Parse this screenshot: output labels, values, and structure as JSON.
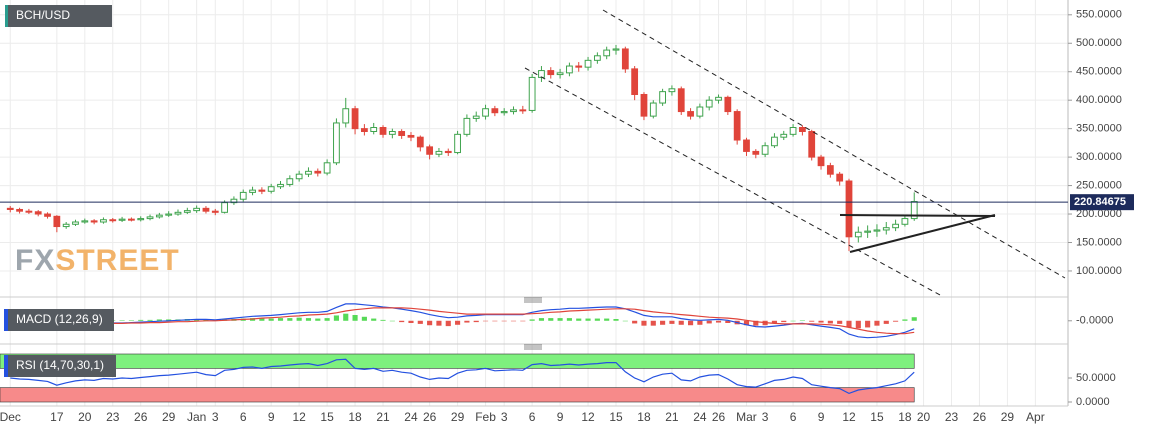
{
  "chart_data": {
    "type": "candlestick",
    "title": "BCH/USD",
    "watermark": [
      "FX",
      "STREET"
    ],
    "x": [
      12,
      13,
      14,
      15,
      16,
      17,
      18,
      19,
      20,
      21,
      22,
      23,
      24,
      25,
      26,
      27,
      28,
      29,
      30,
      31,
      32,
      33,
      34,
      35,
      36,
      37,
      38,
      39,
      40,
      41,
      42,
      43,
      44,
      45,
      46,
      47,
      48,
      49,
      50,
      51,
      52,
      53,
      54,
      55,
      56,
      57,
      58,
      59,
      60,
      61,
      62,
      63,
      64,
      65,
      66,
      67,
      68,
      69,
      70,
      71,
      72,
      73,
      74,
      75,
      76,
      77,
      78,
      79,
      80,
      81,
      82,
      83,
      84,
      85,
      86,
      87,
      88,
      89,
      90,
      91,
      92,
      93,
      94,
      95,
      96,
      97,
      98,
      99,
      100,
      101,
      102,
      103,
      104,
      105,
      106,
      107,
      108,
      109
    ],
    "ohlc": [
      [
        210,
        214,
        203,
        208
      ],
      [
        208,
        211,
        201,
        205
      ],
      [
        205,
        209,
        200,
        204
      ],
      [
        204,
        207,
        196,
        200
      ],
      [
        200,
        203,
        192,
        196
      ],
      [
        196,
        198,
        168,
        178
      ],
      [
        178,
        186,
        174,
        182
      ],
      [
        182,
        190,
        179,
        186
      ],
      [
        186,
        192,
        183,
        188
      ],
      [
        188,
        191,
        182,
        186
      ],
      [
        186,
        194,
        183,
        190
      ],
      [
        190,
        193,
        185,
        189
      ],
      [
        189,
        195,
        186,
        191
      ],
      [
        191,
        194,
        187,
        190
      ],
      [
        190,
        196,
        187,
        192
      ],
      [
        192,
        199,
        189,
        195
      ],
      [
        195,
        202,
        192,
        198
      ],
      [
        198,
        205,
        195,
        200
      ],
      [
        200,
        208,
        197,
        203
      ],
      [
        203,
        211,
        200,
        206
      ],
      [
        206,
        215,
        202,
        210
      ],
      [
        210,
        214,
        201,
        205
      ],
      [
        205,
        209,
        198,
        203
      ],
      [
        203,
        224,
        201,
        220
      ],
      [
        220,
        231,
        216,
        226
      ],
      [
        226,
        243,
        222,
        238
      ],
      [
        238,
        248,
        233,
        242
      ],
      [
        242,
        247,
        235,
        240
      ],
      [
        240,
        253,
        236,
        248
      ],
      [
        248,
        258,
        244,
        252
      ],
      [
        252,
        268,
        248,
        262
      ],
      [
        262,
        276,
        257,
        270
      ],
      [
        270,
        282,
        265,
        275
      ],
      [
        275,
        280,
        266,
        272
      ],
      [
        272,
        296,
        268,
        290
      ],
      [
        290,
        368,
        286,
        360
      ],
      [
        360,
        404,
        352,
        385
      ],
      [
        385,
        390,
        340,
        350
      ],
      [
        350,
        358,
        338,
        345
      ],
      [
        345,
        360,
        340,
        352
      ],
      [
        352,
        356,
        334,
        340
      ],
      [
        340,
        350,
        333,
        345
      ],
      [
        345,
        349,
        332,
        338
      ],
      [
        338,
        344,
        328,
        335
      ],
      [
        335,
        338,
        310,
        318
      ],
      [
        318,
        322,
        296,
        305
      ],
      [
        305,
        316,
        300,
        310
      ],
      [
        310,
        315,
        302,
        308
      ],
      [
        308,
        346,
        305,
        340
      ],
      [
        340,
        375,
        336,
        368
      ],
      [
        368,
        380,
        362,
        372
      ],
      [
        372,
        392,
        366,
        385
      ],
      [
        385,
        390,
        372,
        378
      ],
      [
        378,
        386,
        373,
        380
      ],
      [
        380,
        389,
        375,
        383
      ],
      [
        383,
        390,
        376,
        382
      ],
      [
        382,
        446,
        378,
        440
      ],
      [
        440,
        460,
        432,
        452
      ],
      [
        452,
        458,
        438,
        445
      ],
      [
        445,
        455,
        438,
        448
      ],
      [
        448,
        466,
        442,
        460
      ],
      [
        460,
        467,
        450,
        458
      ],
      [
        458,
        476,
        452,
        470
      ],
      [
        470,
        484,
        464,
        478
      ],
      [
        478,
        494,
        472,
        488
      ],
      [
        488,
        497,
        480,
        490
      ],
      [
        490,
        494,
        448,
        455
      ],
      [
        455,
        460,
        400,
        410
      ],
      [
        410,
        414,
        365,
        372
      ],
      [
        372,
        400,
        368,
        395
      ],
      [
        395,
        420,
        390,
        415
      ],
      [
        415,
        426,
        408,
        420
      ],
      [
        420,
        424,
        374,
        380
      ],
      [
        380,
        386,
        366,
        372
      ],
      [
        372,
        394,
        368,
        388
      ],
      [
        388,
        407,
        382,
        400
      ],
      [
        400,
        410,
        394,
        405
      ],
      [
        405,
        408,
        374,
        380
      ],
      [
        380,
        384,
        322,
        330
      ],
      [
        330,
        334,
        302,
        310
      ],
      [
        310,
        314,
        298,
        305
      ],
      [
        305,
        326,
        300,
        320
      ],
      [
        320,
        342,
        316,
        335
      ],
      [
        335,
        346,
        330,
        340
      ],
      [
        340,
        358,
        336,
        352
      ],
      [
        352,
        356,
        338,
        345
      ],
      [
        345,
        348,
        294,
        300
      ],
      [
        300,
        304,
        278,
        285
      ],
      [
        285,
        290,
        264,
        270
      ],
      [
        270,
        274,
        250,
        258
      ],
      [
        258,
        262,
        135,
        160
      ],
      [
        160,
        178,
        150,
        168
      ],
      [
        168,
        180,
        158,
        170
      ],
      [
        170,
        182,
        160,
        172
      ],
      [
        172,
        186,
        164,
        176
      ],
      [
        176,
        190,
        170,
        182
      ],
      [
        182,
        198,
        178,
        192
      ],
      [
        192,
        238,
        188,
        222
      ]
    ],
    "up_color": "#3fa34d",
    "down_color": "#e0443a",
    "last_price": 220.84675,
    "xlim": [
      10.9,
      125.5
    ],
    "xticks": [
      {
        "value": 12,
        "label": "Dec"
      },
      17,
      20,
      23,
      26,
      29,
      {
        "value": 32,
        "label": "Jan"
      },
      {
        "value": 34,
        "label": "3"
      },
      {
        "value": 37,
        "label": "6"
      },
      {
        "value": 40,
        "label": "9"
      },
      {
        "value": 43,
        "label": "12"
      },
      {
        "value": 46,
        "label": "15"
      },
      {
        "value": 49,
        "label": "18"
      },
      {
        "value": 52,
        "label": "21"
      },
      {
        "value": 55,
        "label": "24"
      },
      {
        "value": 57,
        "label": "26"
      },
      {
        "value": 60,
        "label": "29"
      },
      {
        "value": 63,
        "label": "Feb"
      },
      {
        "value": 65,
        "label": "3"
      },
      {
        "value": 68,
        "label": "6"
      },
      {
        "value": 71,
        "label": "9"
      },
      {
        "value": 74,
        "label": "12"
      },
      {
        "value": 77,
        "label": "15"
      },
      {
        "value": 80,
        "label": "18"
      },
      {
        "value": 83,
        "label": "21"
      },
      {
        "value": 86,
        "label": "24"
      },
      {
        "value": 88,
        "label": "26"
      },
      {
        "value": 91,
        "label": "Mar"
      },
      {
        "value": 93,
        "label": "3"
      },
      {
        "value": 96,
        "label": "6"
      },
      {
        "value": 99,
        "label": "9"
      },
      {
        "value": 102,
        "label": "12"
      },
      {
        "value": 105,
        "label": "15"
      },
      {
        "value": 108,
        "label": "18"
      },
      {
        "value": 110,
        "label": "20"
      },
      {
        "value": 113,
        "label": "23"
      },
      {
        "value": 116,
        "label": "26"
      },
      {
        "value": 119,
        "label": "29"
      },
      {
        "value": 122,
        "label": "Apr"
      }
    ],
    "ylim": [
      56,
      576
    ],
    "yticks": [
      {
        "value": 100,
        "label": "100.0000"
      },
      {
        "value": 150,
        "label": "150.0000"
      },
      {
        "value": 200,
        "label": "200.0000"
      },
      {
        "value": 250,
        "label": "250.0000"
      },
      {
        "value": 300,
        "label": "300.0000"
      },
      {
        "value": 350,
        "label": "350.0000"
      },
      {
        "value": 400,
        "label": "400.0000"
      },
      {
        "value": 450,
        "label": "450.0000"
      },
      {
        "value": 500,
        "label": "500.0000"
      },
      {
        "value": 550,
        "label": "550.0000"
      }
    ],
    "grid": true,
    "panels": [
      {
        "type": "macd",
        "label": "MACD (12,26,9)",
        "ylim": [
          -50,
          40
        ],
        "yticks": [
          {
            "value": 0,
            "label": "-0.0000"
          }
        ],
        "histogram": {
          "up_color": "#57d957",
          "down_color": "#e5534b",
          "values": [
            -2,
            -2,
            -2,
            -2,
            -3,
            -5,
            -5,
            -4,
            -3,
            -1,
            0,
            1,
            1,
            1,
            2,
            2,
            3,
            3,
            3,
            4,
            4,
            3,
            2,
            3,
            4,
            5,
            6,
            5,
            5,
            6,
            6,
            7,
            6,
            5,
            6,
            12,
            16,
            13,
            9,
            5,
            2,
            0,
            -3,
            -5,
            -7,
            -10,
            -11,
            -12,
            -9,
            -4,
            -3,
            -1,
            -1,
            -1,
            -1,
            -1,
            3,
            6,
            6,
            6,
            6,
            5,
            5,
            5,
            5,
            4,
            0,
            -6,
            -11,
            -11,
            -9,
            -7,
            -9,
            -10,
            -9,
            -6,
            -4,
            -5,
            -8,
            -10,
            -11,
            -10,
            -6,
            -3,
            0,
            1,
            -2,
            -4,
            -6,
            -7,
            -15,
            -17,
            -15,
            -11,
            -7,
            -2,
            3,
            8
          ]
        },
        "series": [
          {
            "color": "#2451e0",
            "values": [
              -2,
              -3,
              -3,
              -4,
              -5,
              -8,
              -9,
              -9,
              -8,
              -7,
              -6,
              -5,
              -5,
              -4,
              -3,
              -2,
              -1,
              0,
              1,
              2,
              3,
              3,
              2,
              4,
              6,
              8,
              10,
              11,
              12,
              14,
              16,
              18,
              19,
              19,
              21,
              30,
              38,
              38,
              36,
              34,
              31,
              29,
              26,
              23,
              19,
              14,
              10,
              7,
              8,
              11,
              12,
              14,
              14,
              14,
              14,
              14,
              19,
              23,
              25,
              26,
              28,
              28,
              29,
              30,
              31,
              31,
              27,
              20,
              12,
              9,
              9,
              9,
              5,
              2,
              1,
              2,
              3,
              1,
              -4,
              -9,
              -13,
              -14,
              -12,
              -10,
              -7,
              -6,
              -9,
              -12,
              -15,
              -18,
              -30,
              -36,
              -38,
              -37,
              -35,
              -31,
              -26,
              -18
            ]
          },
          {
            "color": "#e0443a",
            "values": [
              0,
              -1,
              -1,
              -2,
              -2,
              -3,
              -4,
              -5,
              -5,
              -6,
              -6,
              -6,
              -6,
              -5,
              -5,
              -4,
              -4,
              -3,
              -2,
              -2,
              -1,
              0,
              0,
              1,
              2,
              3,
              4,
              6,
              7,
              8,
              10,
              11,
              13,
              14,
              15,
              18,
              22,
              25,
              27,
              29,
              29,
              29,
              29,
              28,
              26,
              24,
              21,
              19,
              17,
              15,
              15,
              15,
              15,
              15,
              15,
              15,
              16,
              17,
              19,
              20,
              22,
              23,
              24,
              25,
              26,
              27,
              27,
              26,
              23,
              20,
              18,
              16,
              14,
              12,
              10,
              8,
              7,
              6,
              4,
              1,
              -2,
              -4,
              -6,
              -7,
              -7,
              -7,
              -7,
              -8,
              -9,
              -11,
              -15,
              -19,
              -23,
              -26,
              -28,
              -29,
              -29,
              -26
            ]
          }
        ]
      },
      {
        "type": "rsi",
        "label": "RSI (14,70,30,1)",
        "ylim": [
          0,
          100
        ],
        "yticks": [
          {
            "value": 0,
            "label": "0.0000"
          },
          {
            "value": 50,
            "label": "50.0000"
          }
        ],
        "overbought": 70,
        "oversold": 30,
        "overbought_color": "#7ef07e",
        "oversold_color": "#f78a8a",
        "series": [
          {
            "color": "#2451e0",
            "values": [
              50,
              48,
              47,
              45,
              43,
              35,
              40,
              44,
              46,
              45,
              49,
              48,
              50,
              49,
              51,
              53,
              55,
              56,
              58,
              60,
              62,
              57,
              55,
              66,
              68,
              72,
              73,
              70,
              74,
              75,
              77,
              79,
              80,
              76,
              80,
              88,
              89,
              70,
              68,
              70,
              64,
              66,
              62,
              60,
              52,
              47,
              50,
              49,
              60,
              66,
              67,
              70,
              65,
              66,
              67,
              66,
              78,
              80,
              76,
              77,
              79,
              77,
              79,
              80,
              82,
              82,
              63,
              50,
              42,
              52,
              58,
              60,
              46,
              44,
              52,
              56,
              57,
              48,
              36,
              32,
              31,
              38,
              45,
              47,
              52,
              49,
              36,
              33,
              30,
              28,
              18,
              25,
              28,
              30,
              34,
              38,
              44,
              62
            ]
          }
        ]
      }
    ]
  }
}
